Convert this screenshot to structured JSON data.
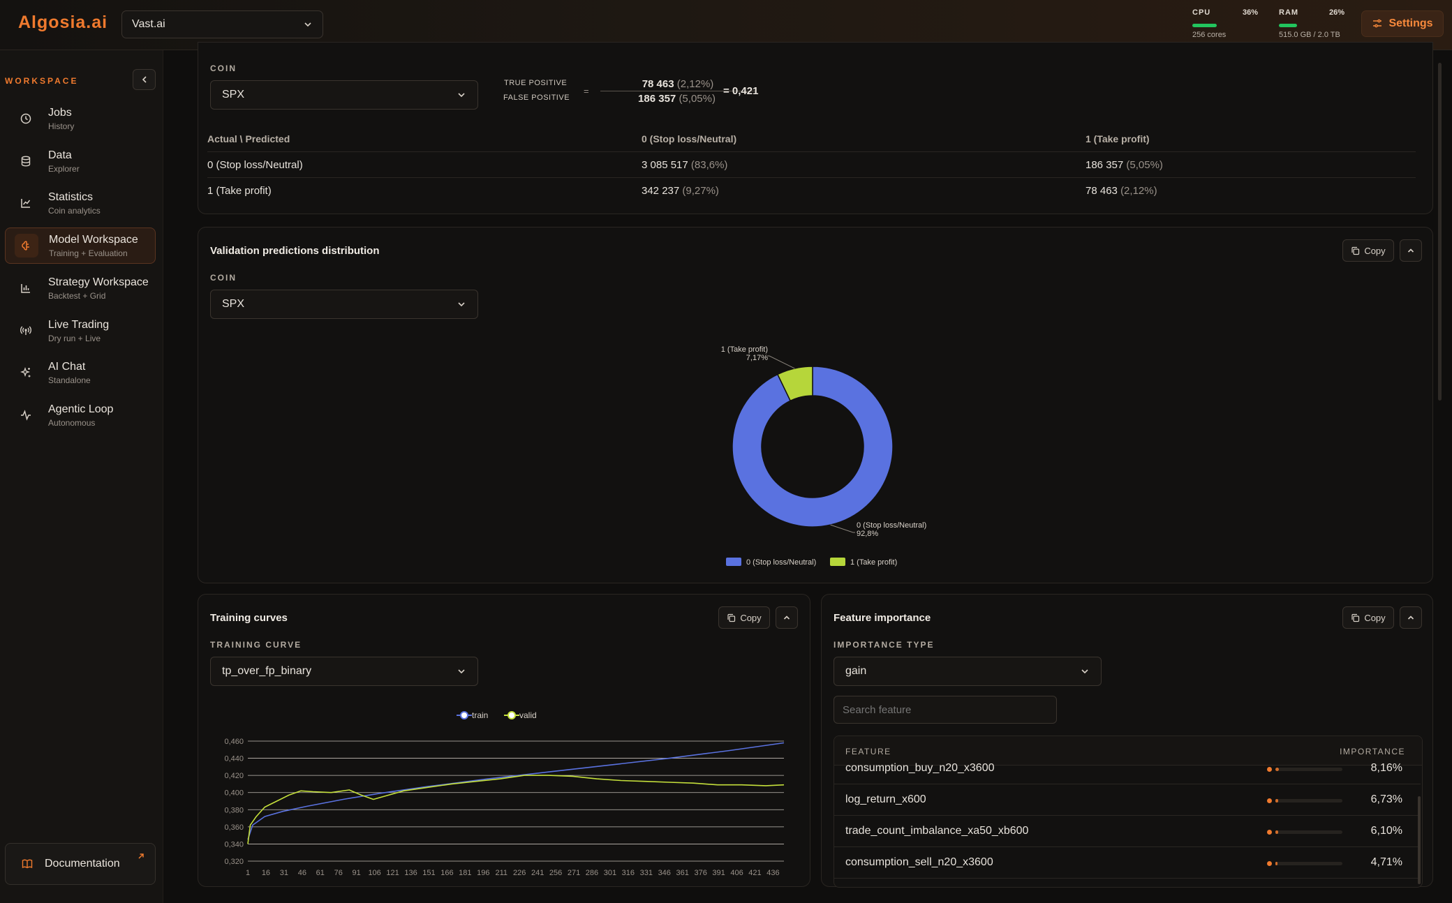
{
  "app": {
    "logo": "Algosia.ai",
    "provider": "Vast.ai"
  },
  "resources": {
    "cpu": {
      "label": "CPU",
      "percent": "36%",
      "detail": "256 cores",
      "level": 0.36
    },
    "ram": {
      "label": "RAM",
      "percent": "26%",
      "detail": "515.0 GB / 2.0 TB",
      "level": 0.26
    }
  },
  "settings_label": "Settings",
  "sidebar": {
    "section_label": "WORKSPACE",
    "items": [
      {
        "title": "Jobs",
        "sub": "History",
        "icon": "clock-icon"
      },
      {
        "title": "Data",
        "sub": "Explorer",
        "icon": "database-icon"
      },
      {
        "title": "Statistics",
        "sub": "Coin analytics",
        "icon": "chart-line-icon"
      },
      {
        "title": "Model Workspace",
        "sub": "Training + Evaluation",
        "icon": "brain-icon"
      },
      {
        "title": "Strategy Workspace",
        "sub": "Backtest + Grid",
        "icon": "bar-chart-icon"
      },
      {
        "title": "Live Trading",
        "sub": "Dry run + Live",
        "icon": "broadcast-icon"
      },
      {
        "title": "AI Chat",
        "sub": "Standalone",
        "icon": "sparkles-icon"
      },
      {
        "title": "Agentic Loop",
        "sub": "Autonomous",
        "icon": "activity-icon"
      }
    ],
    "documentation": "Documentation"
  },
  "confusion": {
    "coin_label": "COIN",
    "coin_value": "SPX",
    "tp_label": "TRUE POSITIVE",
    "fp_label": "FALSE POSITIVE",
    "eq": "=",
    "tp_value": "78 463",
    "tp_pct": "(2,12%)",
    "fp_value": "186 357",
    "fp_pct": "(5,05%)",
    "ratio": "= 0,421",
    "headers": [
      "Actual \\ Predicted",
      "0 (Stop loss/Neutral)",
      "1 (Take profit)"
    ],
    "rows": [
      {
        "label": "0 (Stop loss/Neutral)",
        "c0": "3 085 517",
        "c0p": "(83,6%)",
        "c1": "186 357",
        "c1p": "(5,05%)"
      },
      {
        "label": "1 (Take profit)",
        "c0": "342 237",
        "c0p": "(9,27%)",
        "c1": "78 463",
        "c1p": "(2,12%)"
      }
    ]
  },
  "validation": {
    "title": "Validation predictions distribution",
    "copy": "Copy",
    "coin_label": "COIN",
    "coin_value": "SPX"
  },
  "training": {
    "title": "Training curves",
    "copy": "Copy",
    "curve_label": "TRAINING CURVE",
    "curve_value": "tp_over_fp_binary"
  },
  "features": {
    "title": "Feature importance",
    "copy": "Copy",
    "type_label": "IMPORTANCE TYPE",
    "type_value": "gain",
    "search_placeholder": "Search feature",
    "col_feature": "FEATURE",
    "col_importance": "IMPORTANCE",
    "rows": [
      {
        "name": "consumption_buy_n20_x3600",
        "value": "8,16%",
        "level": 0.0816
      },
      {
        "name": "log_return_x600",
        "value": "6,73%",
        "level": 0.0673
      },
      {
        "name": "trade_count_imbalance_xa50_xb600",
        "value": "6,10%",
        "level": 0.061
      },
      {
        "name": "consumption_sell_n20_x3600",
        "value": "4,71%",
        "level": 0.0471
      }
    ]
  },
  "colors": {
    "accent": "#f07a2e",
    "series_train": "#5a72e0",
    "series_valid": "#c5e03b"
  },
  "chart_data": [
    {
      "type": "pie",
      "categories": [
        "0 (Stop loss/Neutral)",
        "1 (Take profit)"
      ],
      "values": [
        92.8,
        7.17
      ],
      "labels": [
        "92,8%",
        "7,17%"
      ],
      "legend": [
        "0 (Stop loss/Neutral)",
        "1 (Take profit)"
      ],
      "legend_position": "bottom",
      "colors": [
        "#5a72e0",
        "#b6d63a"
      ]
    },
    {
      "type": "line",
      "legend": [
        "train",
        "valid"
      ],
      "legend_position": "top",
      "ylim": [
        0.32,
        0.46
      ],
      "yticks": [
        "0,460",
        "0,440",
        "0,420",
        "0,400",
        "0,380",
        "0,360",
        "0,340",
        "0,320"
      ],
      "xticks": [
        "1",
        "16",
        "31",
        "46",
        "61",
        "76",
        "91",
        "106",
        "121",
        "136",
        "151",
        "166",
        "181",
        "196",
        "211",
        "226",
        "241",
        "256",
        "271",
        "286",
        "301",
        "316",
        "331",
        "346",
        "361",
        "376",
        "391",
        "406",
        "421",
        "436"
      ],
      "x_range": [
        1,
        445
      ],
      "series": [
        {
          "name": "train",
          "x": [
            1,
            5,
            15,
            30,
            50,
            80,
            110,
            150,
            200,
            250,
            300,
            350,
            400,
            445
          ],
          "values": [
            0.345,
            0.362,
            0.372,
            0.378,
            0.384,
            0.392,
            0.399,
            0.407,
            0.416,
            0.424,
            0.432,
            0.44,
            0.449,
            0.458
          ]
        },
        {
          "name": "valid",
          "x": [
            1,
            3,
            8,
            15,
            25,
            35,
            45,
            55,
            70,
            85,
            95,
            105,
            115,
            130,
            150,
            170,
            190,
            210,
            230,
            250,
            270,
            290,
            310,
            330,
            350,
            370,
            390,
            410,
            430,
            445
          ],
          "values": [
            0.34,
            0.362,
            0.372,
            0.383,
            0.39,
            0.397,
            0.402,
            0.401,
            0.4,
            0.403,
            0.397,
            0.392,
            0.396,
            0.402,
            0.406,
            0.41,
            0.413,
            0.416,
            0.42,
            0.42,
            0.419,
            0.416,
            0.414,
            0.413,
            0.412,
            0.411,
            0.409,
            0.409,
            0.408,
            0.409
          ]
        }
      ]
    }
  ]
}
